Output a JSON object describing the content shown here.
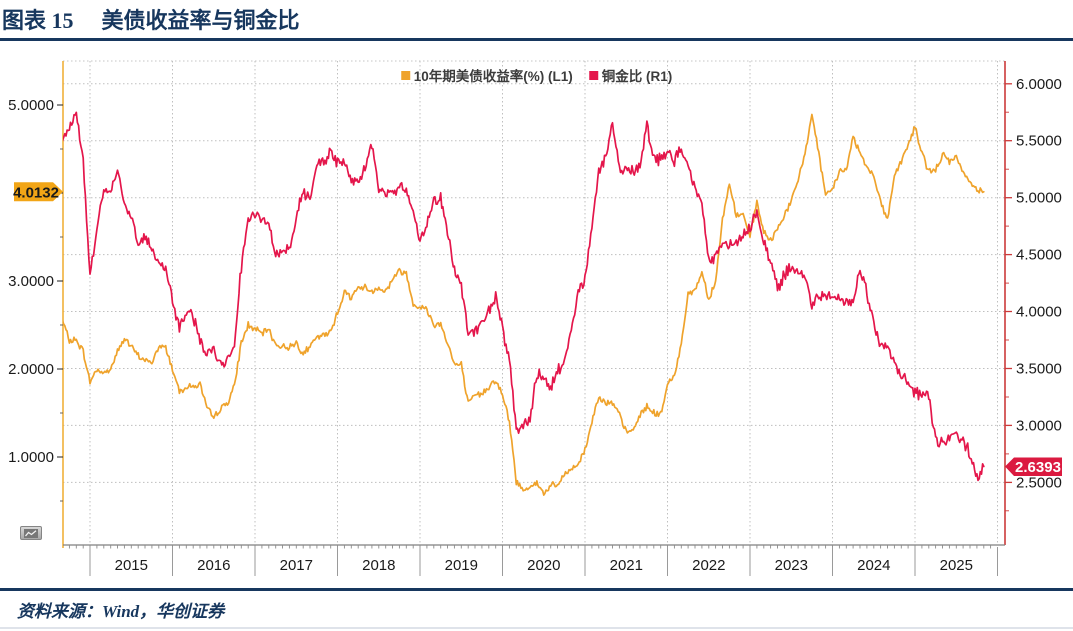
{
  "header": {
    "figure_label": "图表 15",
    "title": "美债收益率与铜金比",
    "accent_color": "#17375E"
  },
  "footer": {
    "source": "资料来源：Wind，华创证券"
  },
  "tags": {
    "left": {
      "value": "4.0132",
      "bg": "#F2A516",
      "fg": "#1a1a1a"
    },
    "right": {
      "value": "2.6393",
      "bg": "#DB1A40",
      "fg": "#ffffff"
    }
  },
  "mini_button": {
    "icon": "line-chart-icon"
  },
  "chart_data": {
    "type": "line",
    "title": "美债收益率与铜金比",
    "x_unit": "year",
    "x_start": 2014.667,
    "x_step": 0.083333,
    "x_axis": {
      "years": [
        "2015",
        "2016",
        "2017",
        "2018",
        "2019",
        "2020",
        "2021",
        "2022",
        "2023",
        "2024",
        "2025"
      ],
      "range": [
        2014.65,
        2026.1
      ]
    },
    "grid": {
      "style": "dotted",
      "h_on_right_axis_values": [
        6.0,
        5.5,
        5.0,
        4.5,
        4.0,
        3.5,
        3.0,
        2.5
      ],
      "v_on_year_starts": true
    },
    "axes": {
      "left": {
        "range": [
          0,
          5.5
        ],
        "color": "#F0B13A",
        "ticks": [
          {
            "v": 5,
            "label": "5.0000"
          },
          {
            "v": 4,
            "label": ""
          },
          {
            "v": 3,
            "label": "3.0000"
          },
          {
            "v": 2,
            "label": "2.0000"
          },
          {
            "v": 1,
            "label": "1.0000"
          }
        ],
        "minor_step": 0.5
      },
      "right": {
        "range": [
          1.95,
          6.2
        ],
        "color": "#CC3A3A",
        "ticks": [
          {
            "v": 6,
            "label": "6.0000"
          },
          {
            "v": 5.5,
            "label": "5.5000"
          },
          {
            "v": 5,
            "label": "5.0000"
          },
          {
            "v": 4.5,
            "label": "4.5000"
          },
          {
            "v": 4,
            "label": "4.0000"
          },
          {
            "v": 3.5,
            "label": "3.5000"
          },
          {
            "v": 3,
            "label": "3.0000"
          },
          {
            "v": 2.5,
            "label": "2.5000"
          }
        ],
        "minor_step": 0.25
      }
    },
    "legend": {
      "position": "top-center"
    },
    "series": [
      {
        "name": "10年期美债收益率(%) (L1)",
        "axis": "left",
        "color": "#EFA32C",
        "last_value": 4.0132,
        "values": [
          2.55,
          2.32,
          2.33,
          2.2,
          1.85,
          2.0,
          1.95,
          2.0,
          2.2,
          2.35,
          2.25,
          2.15,
          2.1,
          2.07,
          2.25,
          2.25,
          2.0,
          1.75,
          1.8,
          1.8,
          1.83,
          1.55,
          1.45,
          1.55,
          1.62,
          1.8,
          2.3,
          2.5,
          2.45,
          2.4,
          2.45,
          2.28,
          2.25,
          2.25,
          2.3,
          2.18,
          2.25,
          2.36,
          2.38,
          2.42,
          2.65,
          2.87,
          2.82,
          2.92,
          2.93,
          2.88,
          2.93,
          2.88,
          3.02,
          3.12,
          3.08,
          2.75,
          2.7,
          2.68,
          2.5,
          2.52,
          2.3,
          2.05,
          2.05,
          1.6,
          1.7,
          1.72,
          1.8,
          1.88,
          1.7,
          1.4,
          0.72,
          0.63,
          0.67,
          0.7,
          0.58,
          0.68,
          0.67,
          0.8,
          0.86,
          0.92,
          1.08,
          1.4,
          1.7,
          1.62,
          1.6,
          1.48,
          1.28,
          1.3,
          1.48,
          1.58,
          1.5,
          1.48,
          1.82,
          1.92,
          2.3,
          2.85,
          2.9,
          3.1,
          2.8,
          3.0,
          3.7,
          4.1,
          3.75,
          3.75,
          3.5,
          3.9,
          3.55,
          3.45,
          3.6,
          3.75,
          3.9,
          4.15,
          4.45,
          4.9,
          4.45,
          3.95,
          4.05,
          4.25,
          4.25,
          4.65,
          4.45,
          4.3,
          4.2,
          3.9,
          3.7,
          4.2,
          4.35,
          4.55,
          4.75,
          4.45,
          4.25,
          4.25,
          4.45,
          4.35,
          4.4,
          4.25,
          4.1,
          4.05,
          4.0132
        ]
      },
      {
        "name": "铜金比 (R1)",
        "axis": "right",
        "color": "#E4164B",
        "last_value": 2.6393,
        "values": [
          5.5,
          5.62,
          5.74,
          5.35,
          4.3,
          4.75,
          5.05,
          5.05,
          5.25,
          4.95,
          4.85,
          4.6,
          4.65,
          4.55,
          4.42,
          4.38,
          4.1,
          3.85,
          4.0,
          3.95,
          3.75,
          3.62,
          3.68,
          3.55,
          3.58,
          3.72,
          4.4,
          4.82,
          4.85,
          4.82,
          4.73,
          4.5,
          4.52,
          4.55,
          4.85,
          5.05,
          5.0,
          5.3,
          5.33,
          5.38,
          5.32,
          5.3,
          5.15,
          5.15,
          5.28,
          5.45,
          5.05,
          5.05,
          5.05,
          5.1,
          5.08,
          4.88,
          4.62,
          4.78,
          4.95,
          5.0,
          4.7,
          4.38,
          4.22,
          3.82,
          3.82,
          3.9,
          4.0,
          4.13,
          3.85,
          3.56,
          2.95,
          3.0,
          3.05,
          3.45,
          3.42,
          3.33,
          3.48,
          3.53,
          3.82,
          4.17,
          4.3,
          4.75,
          5.22,
          5.35,
          5.65,
          5.25,
          5.25,
          5.25,
          5.28,
          5.65,
          5.33,
          5.35,
          5.4,
          5.32,
          5.45,
          5.28,
          5.1,
          4.95,
          4.42,
          4.5,
          4.6,
          4.6,
          4.6,
          4.67,
          4.75,
          4.85,
          4.62,
          4.43,
          4.2,
          4.33,
          4.38,
          4.35,
          4.31,
          4.05,
          4.12,
          4.16,
          4.14,
          4.12,
          4.08,
          4.1,
          4.38,
          4.16,
          3.92,
          3.7,
          3.7,
          3.55,
          3.42,
          3.39,
          3.29,
          3.25,
          3.27,
          2.85,
          2.88,
          2.9,
          2.91,
          2.88,
          2.74,
          2.55,
          2.6393
        ]
      }
    ]
  }
}
